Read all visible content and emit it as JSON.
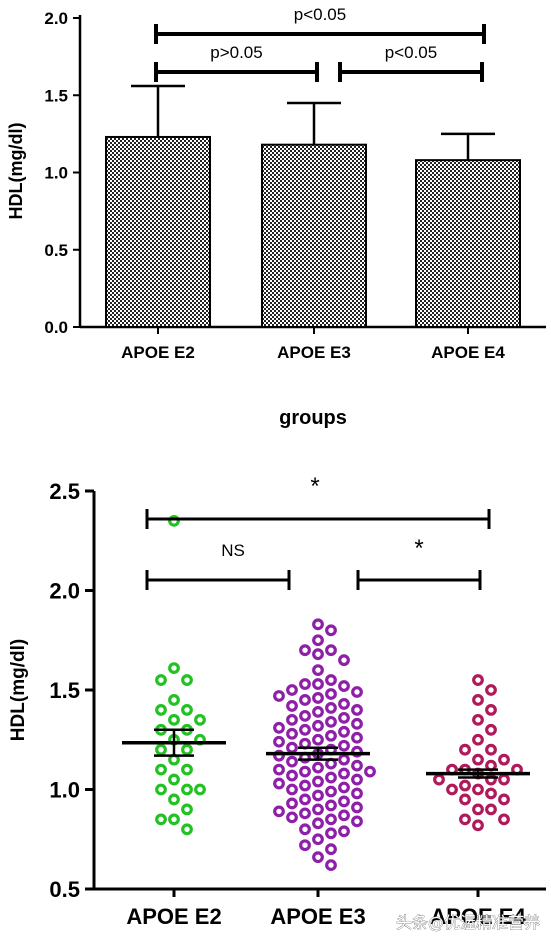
{
  "chart_data": [
    {
      "type": "bar",
      "categories": [
        "APOE E2",
        "APOE E3",
        "APOE E4"
      ],
      "values": [
        1.23,
        1.18,
        1.08
      ],
      "error_upper": [
        1.56,
        1.45,
        1.25
      ],
      "ylabel": "HDL(mg/dl)",
      "xlabel": "groups",
      "ylim": [
        0.0,
        2.0
      ],
      "yticks": [
        "0.0",
        "0.5",
        "1.0",
        "1.5",
        "2.0"
      ],
      "fill": "checkered",
      "comparisons": [
        {
          "from": 0,
          "to": 2,
          "label": "p<0.05"
        },
        {
          "from": 0,
          "to": 1,
          "label": "p>0.05"
        },
        {
          "from": 1,
          "to": 2,
          "label": "p<0.05"
        }
      ]
    },
    {
      "type": "scatter",
      "categories": [
        "APOE E2",
        "APOE E3",
        "APOE E4"
      ],
      "ylabel": "HDL(mg/dl)",
      "ylim": [
        0.5,
        2.5
      ],
      "yticks": [
        "0.5",
        "1.0",
        "1.5",
        "2.0",
        "2.5"
      ],
      "means": [
        1.235,
        1.18,
        1.08
      ],
      "sem_low": [
        1.17,
        1.15,
        1.06
      ],
      "sem_high": [
        1.3,
        1.21,
        1.1
      ],
      "series": [
        {
          "color": "#22c222",
          "points": [
            2.35,
            1.61,
            1.55,
            1.55,
            1.45,
            1.4,
            1.4,
            1.35,
            1.35,
            1.3,
            1.3,
            1.25,
            1.25,
            1.2,
            1.2,
            1.15,
            1.1,
            1.1,
            1.05,
            1.0,
            1.0,
            1.0,
            0.95,
            0.9,
            0.85,
            0.85,
            0.8
          ]
        },
        {
          "color": "#8e1fa8",
          "points": [
            1.83,
            1.8,
            1.75,
            1.7,
            1.7,
            1.68,
            1.65,
            1.6,
            1.55,
            1.53,
            1.52,
            1.5,
            1.49,
            1.47,
            1.45,
            1.43,
            1.42,
            1.4,
            1.39,
            1.37,
            1.35,
            1.34,
            1.32,
            1.3,
            1.29,
            1.27,
            1.25,
            1.24,
            1.22,
            1.2,
            1.19,
            1.18,
            1.17,
            1.15,
            1.14,
            1.12,
            1.11,
            1.1,
            1.09,
            1.08,
            1.06,
            1.05,
            1.04,
            1.02,
            1.0,
            0.99,
            0.97,
            0.95,
            0.93,
            0.91,
            0.9,
            0.88,
            0.86,
            0.85,
            0.83,
            0.8,
            0.78,
            0.75,
            0.72,
            0.7,
            0.66,
            0.62,
            1.53,
            1.46,
            1.41,
            1.36,
            1.31,
            1.26,
            1.21,
            1.16,
            1.13,
            1.07,
            1.03,
            0.98,
            0.94,
            0.89,
            0.84,
            0.79,
            1.48,
            1.33,
            1.28,
            1.23,
            1.09,
            1.01,
            0.92,
            0.87
          ]
        },
        {
          "color": "#b0195a",
          "points": [
            1.55,
            1.5,
            1.45,
            1.4,
            1.35,
            1.3,
            1.25,
            1.2,
            1.2,
            1.15,
            1.15,
            1.1,
            1.1,
            1.1,
            1.05,
            1.05,
            1.05,
            1.0,
            1.0,
            0.95,
            0.95,
            0.9,
            0.9,
            0.85,
            0.85,
            0.82,
            1.12,
            1.08,
            1.02,
            0.98
          ]
        }
      ],
      "comparisons": [
        {
          "from": 0,
          "to": 2,
          "label": "*"
        },
        {
          "from": 0,
          "to": 1,
          "label": "NS"
        },
        {
          "from": 1,
          "to": 2,
          "label": "*"
        }
      ]
    }
  ],
  "watermark": "头条@优渥精准营养"
}
